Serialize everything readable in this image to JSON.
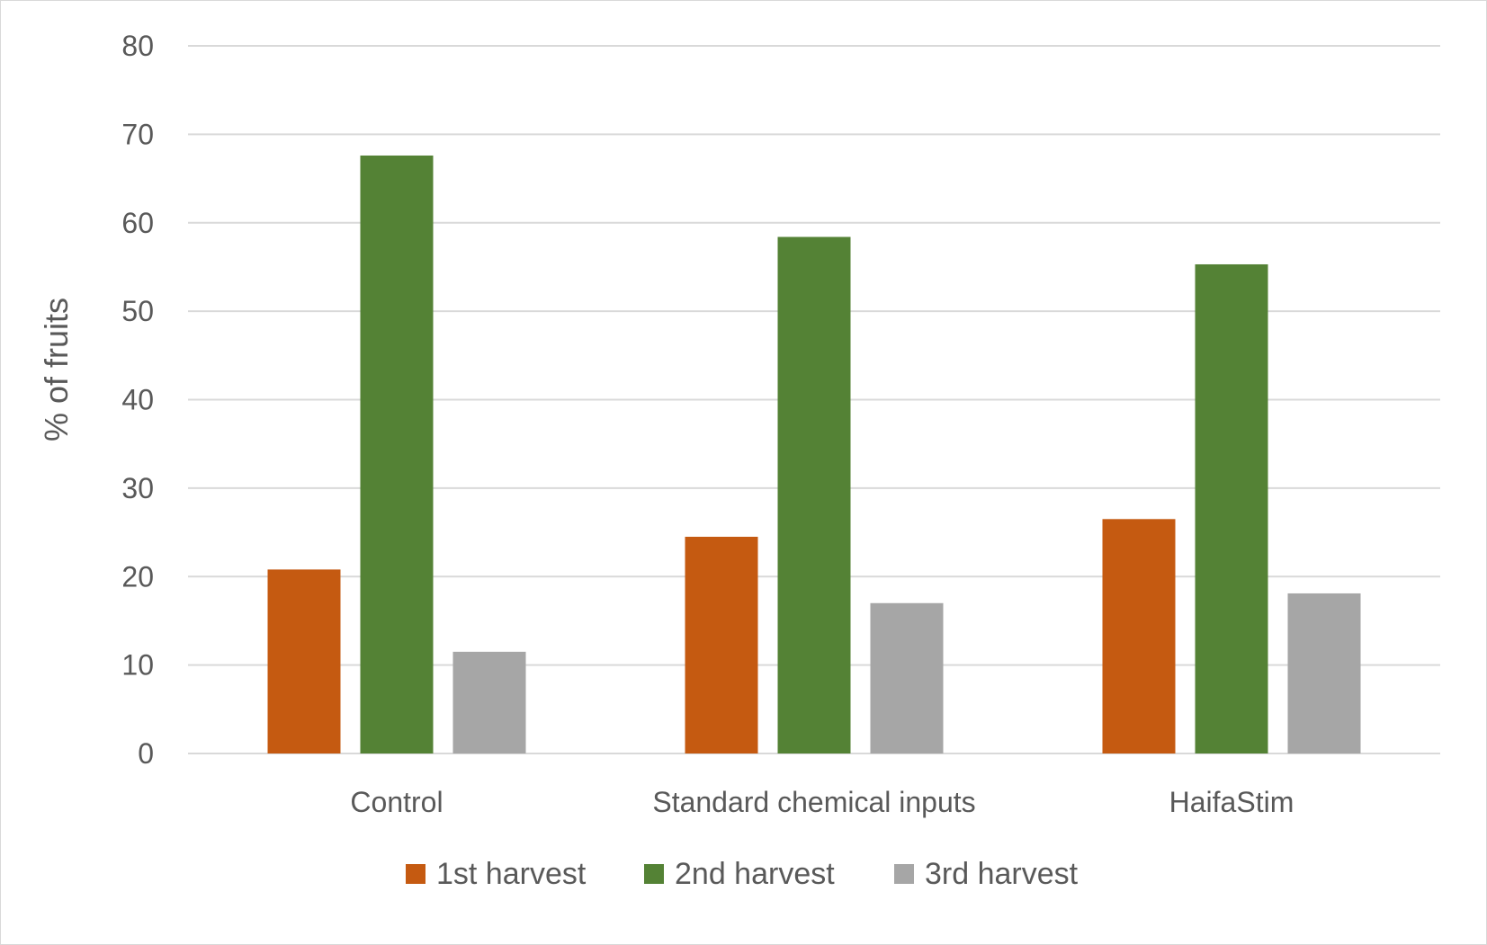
{
  "chart_data": {
    "type": "bar",
    "title": "",
    "xlabel": "",
    "ylabel": "% of fruits",
    "ylim": [
      0,
      80
    ],
    "yticks": [
      0,
      10,
      20,
      30,
      40,
      50,
      60,
      70,
      80
    ],
    "categories": [
      "Control",
      "Standard chemical inputs",
      "HaifaStim"
    ],
    "series": [
      {
        "name": "1st harvest",
        "color": "#c55a11",
        "values": [
          20.8,
          24.5,
          26.5
        ]
      },
      {
        "name": "2nd harvest",
        "color": "#548235",
        "values": [
          67.6,
          58.4,
          55.3
        ]
      },
      {
        "name": "3rd harvest",
        "color": "#a6a6a6",
        "values": [
          11.5,
          17.0,
          18.1
        ]
      }
    ],
    "grid": true,
    "gridline_color": "#d9d9d9",
    "legend_position": "bottom"
  }
}
